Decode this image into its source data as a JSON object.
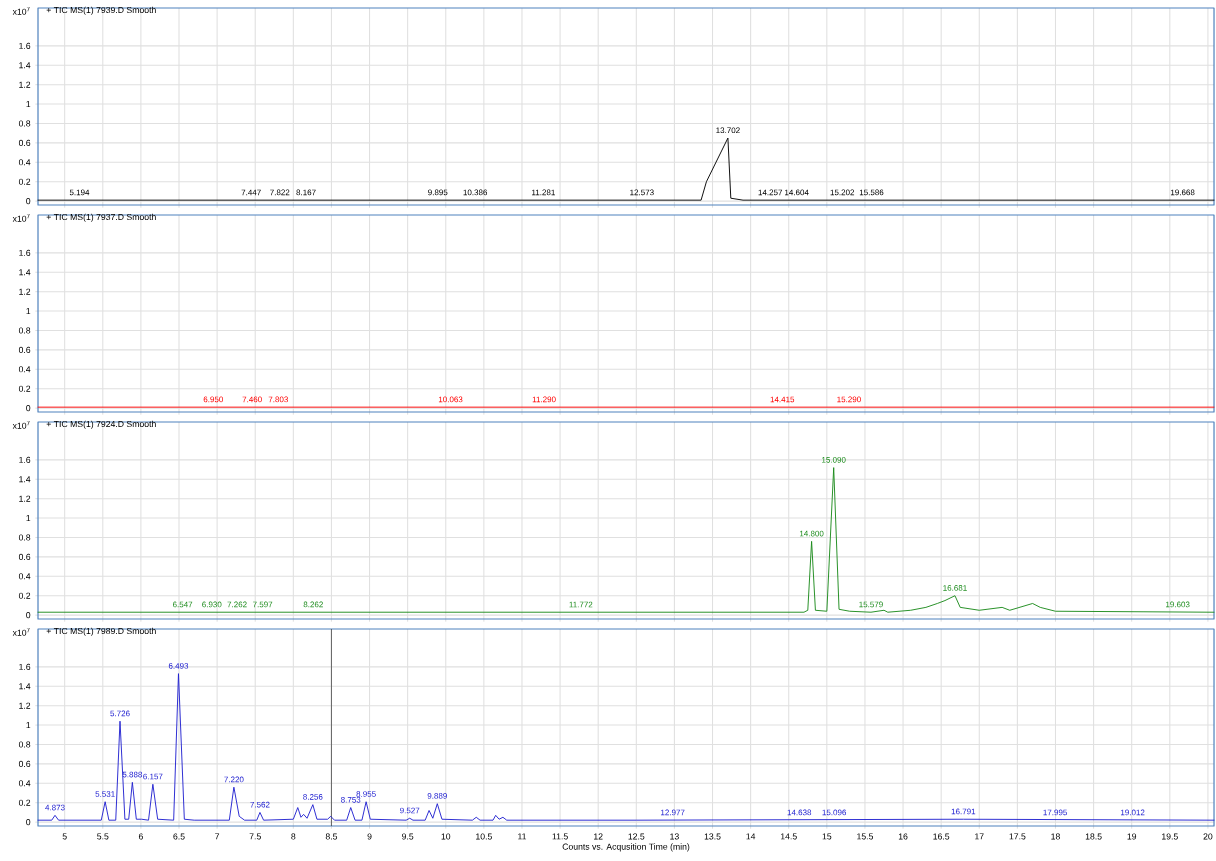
{
  "chart_data": [
    {
      "type": "line",
      "title": "+ TIC MS(1) 7939.D  Smooth",
      "ylabel": "x10$^{7}$",
      "tick_labels": "y",
      "grid": true,
      "x": [
        4.65,
        13.35,
        13.42,
        13.702,
        13.74,
        13.9,
        20.08
      ],
      "series": [
        {
          "color": "#000000",
          "values": [
            0.01,
            0.01,
            0.2,
            0.65,
            0.03,
            0.01,
            0.01
          ]
        }
      ],
      "xlim": [
        4.65,
        20.08
      ],
      "ylim": [
        -0.04,
        1.99
      ],
      "xticks": [
        5,
        5.5,
        6,
        6.5,
        7,
        7.5,
        8,
        8.5,
        9,
        9.5,
        10,
        10.5,
        11,
        11.5,
        12,
        12.5,
        13,
        13.5,
        14,
        14.5,
        15,
        15.5,
        16,
        16.5,
        17,
        17.5,
        18,
        18.5,
        19,
        19.5,
        20
      ],
      "yticks": [
        0,
        0.2,
        0.4,
        0.6,
        0.8,
        1,
        1.2,
        1.4,
        1.6
      ],
      "annotations": [
        {
          "text": "5.194",
          "x": 5.194,
          "y": 0.01
        },
        {
          "text": "7.447",
          "x": 7.447,
          "y": 0.01
        },
        {
          "text": "7.822",
          "x": 7.822,
          "y": 0.01
        },
        {
          "text": "8.167",
          "x": 8.167,
          "y": 0.01
        },
        {
          "text": "9.895",
          "x": 9.895,
          "y": 0.01
        },
        {
          "text": "10.386",
          "x": 10.386,
          "y": 0.01
        },
        {
          "text": "11.281",
          "x": 11.281,
          "y": 0.01
        },
        {
          "text": "12.573",
          "x": 12.573,
          "y": 0.01
        },
        {
          "text": "13.702",
          "x": 13.702,
          "y": 0.65
        },
        {
          "text": "14.257",
          "x": 14.257,
          "y": 0.01
        },
        {
          "text": "14.604",
          "x": 14.604,
          "y": 0.01
        },
        {
          "text": "15.202",
          "x": 15.202,
          "y": 0.01
        },
        {
          "text": "15.586",
          "x": 15.586,
          "y": 0.01
        },
        {
          "text": "19.668",
          "x": 19.668,
          "y": 0.01
        }
      ]
    },
    {
      "type": "line",
      "title": "+ TIC MS(1) 7937.D  Smooth",
      "ylabel": "x10$^{7}$",
      "tick_labels": "y",
      "grid": true,
      "x": [
        4.65,
        20.08
      ],
      "series": [
        {
          "color": "#ff0000",
          "values": [
            0.01,
            0.01
          ]
        }
      ],
      "xlim": [
        4.65,
        20.08
      ],
      "ylim": [
        -0.04,
        1.99
      ],
      "xticks": [
        5,
        5.5,
        6,
        6.5,
        7,
        7.5,
        8,
        8.5,
        9,
        9.5,
        10,
        10.5,
        11,
        11.5,
        12,
        12.5,
        13,
        13.5,
        14,
        14.5,
        15,
        15.5,
        16,
        16.5,
        17,
        17.5,
        18,
        18.5,
        19,
        19.5,
        20
      ],
      "yticks": [
        0,
        0.2,
        0.4,
        0.6,
        0.8,
        1,
        1.2,
        1.4,
        1.6
      ],
      "annotations": [
        {
          "text": "6.950",
          "x": 6.95,
          "y": 0.01
        },
        {
          "text": "7.460",
          "x": 7.46,
          "y": 0.01
        },
        {
          "text": "7.803",
          "x": 7.803,
          "y": 0.01
        },
        {
          "text": "10.063",
          "x": 10.063,
          "y": 0.01
        },
        {
          "text": "11.290",
          "x": 11.29,
          "y": 0.01
        },
        {
          "text": "14.415",
          "x": 14.415,
          "y": 0.01
        },
        {
          "text": "15.290",
          "x": 15.29,
          "y": 0.01
        }
      ]
    },
    {
      "type": "line",
      "title": "+ TIC MS(1) 7924.D  Smooth",
      "ylabel": "x10$^{7}$",
      "tick_labels": "y",
      "grid": true,
      "x": [
        4.65,
        14.7,
        14.75,
        14.8,
        14.85,
        15.0,
        15.09,
        15.16,
        15.3,
        15.579,
        15.75,
        15.8,
        16.1,
        16.3,
        16.45,
        16.55,
        16.681,
        16.75,
        17.0,
        17.3,
        17.4,
        17.7,
        17.8,
        18.0,
        20.08
      ],
      "series": [
        {
          "color": "#1a8a1a",
          "values": [
            0.03,
            0.03,
            0.05,
            0.76,
            0.05,
            0.04,
            1.52,
            0.06,
            0.04,
            0.03,
            0.05,
            0.03,
            0.05,
            0.08,
            0.12,
            0.15,
            0.2,
            0.08,
            0.05,
            0.08,
            0.05,
            0.12,
            0.08,
            0.04,
            0.03
          ]
        }
      ],
      "xlim": [
        4.65,
        20.08
      ],
      "ylim": [
        -0.04,
        1.99
      ],
      "xticks": [
        5,
        5.5,
        6,
        6.5,
        7,
        7.5,
        8,
        8.5,
        9,
        9.5,
        10,
        10.5,
        11,
        11.5,
        12,
        12.5,
        13,
        13.5,
        14,
        14.5,
        15,
        15.5,
        16,
        16.5,
        17,
        17.5,
        18,
        18.5,
        19,
        19.5,
        20
      ],
      "yticks": [
        0,
        0.2,
        0.4,
        0.6,
        0.8,
        1,
        1.2,
        1.4,
        1.6
      ],
      "annotations": [
        {
          "text": "6.547",
          "x": 6.547,
          "y": 0.03
        },
        {
          "text": "6.930",
          "x": 6.93,
          "y": 0.03
        },
        {
          "text": "7.262",
          "x": 7.262,
          "y": 0.03
        },
        {
          "text": "7.597",
          "x": 7.597,
          "y": 0.03
        },
        {
          "text": "8.262",
          "x": 8.262,
          "y": 0.03
        },
        {
          "text": "11.772",
          "x": 11.772,
          "y": 0.03
        },
        {
          "text": "14.800",
          "x": 14.8,
          "y": 0.76
        },
        {
          "text": "15.090",
          "x": 15.09,
          "y": 1.52
        },
        {
          "text": "15.579",
          "x": 15.579,
          "y": 0.03
        },
        {
          "text": "16.681",
          "x": 16.681,
          "y": 0.2
        },
        {
          "text": "19.603",
          "x": 19.603,
          "y": 0.03
        }
      ]
    },
    {
      "type": "line",
      "title": "+ TIC MS(1) 7989.D  Smooth",
      "ylabel": "x10$^{7}$",
      "xlabel": "Counts vs. Acqusition Time (min)",
      "grid": true,
      "x": [
        4.65,
        4.83,
        4.873,
        4.92,
        5.48,
        5.531,
        5.58,
        5.67,
        5.726,
        5.79,
        5.84,
        5.888,
        5.94,
        6.009,
        6.1,
        6.157,
        6.22,
        6.43,
        6.493,
        6.57,
        6.7,
        7.16,
        7.22,
        7.29,
        7.36,
        7.52,
        7.562,
        7.61,
        8.0,
        8.058,
        8.1,
        8.135,
        8.18,
        8.256,
        8.31,
        8.45,
        8.49,
        8.54,
        8.7,
        8.753,
        8.81,
        8.9,
        8.955,
        9.01,
        9.48,
        9.527,
        9.57,
        9.73,
        9.781,
        9.83,
        9.889,
        9.95,
        10.35,
        10.4,
        10.45,
        10.62,
        10.655,
        10.7,
        10.75,
        10.8,
        11.8,
        12.5,
        16.791,
        20.08
      ],
      "series": [
        {
          "color": "#2020d0",
          "values": [
            0.02,
            0.02,
            0.07,
            0.02,
            0.02,
            0.21,
            0.02,
            0.02,
            1.04,
            0.03,
            0.03,
            0.41,
            0.03,
            0.03,
            0.02,
            0.39,
            0.03,
            0.02,
            1.53,
            0.03,
            0.02,
            0.02,
            0.36,
            0.06,
            0.02,
            0.02,
            0.1,
            0.02,
            0.03,
            0.15,
            0.05,
            0.08,
            0.04,
            0.18,
            0.03,
            0.03,
            0.06,
            0.02,
            0.02,
            0.15,
            0.02,
            0.02,
            0.21,
            0.03,
            0.02,
            0.04,
            0.02,
            0.02,
            0.12,
            0.04,
            0.19,
            0.03,
            0.02,
            0.05,
            0.02,
            0.02,
            0.07,
            0.03,
            0.05,
            0.02,
            0.02,
            0.02,
            0.03,
            0.02
          ]
        }
      ],
      "xlim": [
        4.65,
        20.08
      ],
      "ylim": [
        -0.04,
        1.99
      ],
      "xticks": [
        5,
        5.5,
        6,
        6.5,
        7,
        7.5,
        8,
        8.5,
        9,
        9.5,
        10,
        10.5,
        11,
        11.5,
        12,
        12.5,
        13,
        13.5,
        14,
        14.5,
        15,
        15.5,
        16,
        16.5,
        17,
        17.5,
        18,
        18.5,
        19,
        19.5,
        20
      ],
      "yticks": [
        0,
        0.2,
        0.4,
        0.6,
        0.8,
        1,
        1.2,
        1.4,
        1.6
      ],
      "ref_lines": [
        {
          "axis": "x",
          "value": 8.5,
          "color": "#404040"
        }
      ],
      "annotations": [
        {
          "text": "4.873",
          "x": 4.873,
          "y": 0.07
        },
        {
          "text": "5.531",
          "x": 5.531,
          "y": 0.21
        },
        {
          "text": "5.726",
          "x": 5.726,
          "y": 1.04
        },
        {
          "text": "5.888",
          "x": 5.888,
          "y": 0.41
        },
        {
          "text": "6.157",
          "x": 6.157,
          "y": 0.39
        },
        {
          "text": "6.493",
          "x": 6.493,
          "y": 1.53
        },
        {
          "text": "7.220",
          "x": 7.22,
          "y": 0.36
        },
        {
          "text": "7.562",
          "x": 7.562,
          "y": 0.1
        },
        {
          "text": "8.256",
          "x": 8.256,
          "y": 0.18
        },
        {
          "text": "8.753",
          "x": 8.753,
          "y": 0.15
        },
        {
          "text": "8.955",
          "x": 8.955,
          "y": 0.21
        },
        {
          "text": "9.527",
          "x": 9.527,
          "y": 0.04
        },
        {
          "text": "9.889",
          "x": 9.889,
          "y": 0.19
        },
        {
          "text": "12.977",
          "x": 12.977,
          "y": 0.02
        },
        {
          "text": "14.638",
          "x": 14.638,
          "y": 0.02
        },
        {
          "text": "15.096",
          "x": 15.096,
          "y": 0.02
        },
        {
          "text": "16.791",
          "x": 16.791,
          "y": 0.03
        },
        {
          "text": "17.995",
          "x": 17.995,
          "y": 0.02
        },
        {
          "text": "19.012",
          "x": 19.012,
          "y": 0.02
        }
      ]
    }
  ]
}
